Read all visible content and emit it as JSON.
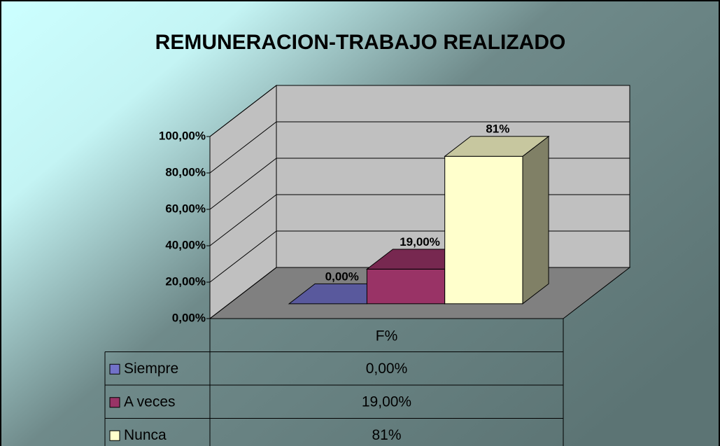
{
  "chart_data": {
    "type": "bar3d",
    "title": "REMUNERACION-TRABAJO REALIZADO",
    "categories": [
      "F%"
    ],
    "series": [
      {
        "name": "Siempre",
        "color": "#7272c9",
        "values": [
          0
        ],
        "value_labels": [
          "0,00%"
        ]
      },
      {
        "name": "A veces",
        "color": "#993366",
        "values": [
          19
        ],
        "value_labels": [
          "19,00%"
        ]
      },
      {
        "name": "Nunca",
        "color": "#ffffcc",
        "values": [
          81
        ],
        "value_labels": [
          "81%"
        ]
      }
    ],
    "ylim": [
      0,
      100
    ],
    "yticks": [
      {
        "value": 0,
        "label": "0,00%"
      },
      {
        "value": 20,
        "label": "20,00%"
      },
      {
        "value": 40,
        "label": "40,00%"
      },
      {
        "value": 60,
        "label": "60,00%"
      },
      {
        "value": 80,
        "label": "80,00%"
      },
      {
        "value": 100,
        "label": "100,00%"
      }
    ],
    "grid": true,
    "data_table": true
  }
}
